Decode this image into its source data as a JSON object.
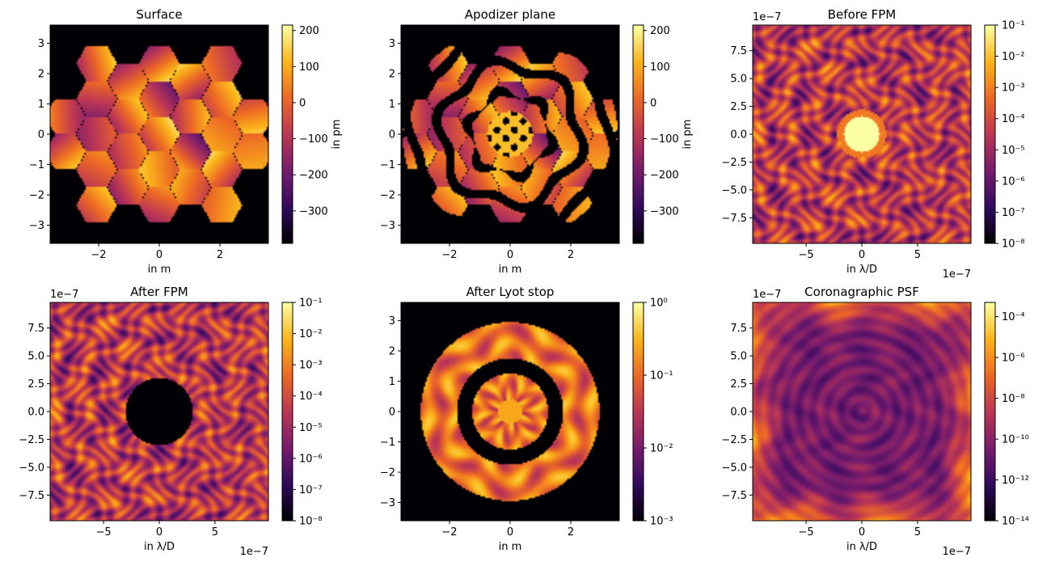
{
  "figure": {
    "layout": "2x3 grid of image panels with colorbars"
  },
  "colors": {
    "colormap": "inferno",
    "stops": [
      "#000004",
      "#320a5e",
      "#781c6d",
      "#bc3754",
      "#ed6925",
      "#fbb61a",
      "#fcffa4"
    ]
  },
  "chart_data": [
    {
      "type": "heatmap",
      "title": "Surface",
      "content": "hex-segments",
      "xlabel": "in m",
      "ylabel": "",
      "x_offset": "",
      "y_offset": "",
      "xlim": [
        -3.6,
        3.6
      ],
      "ylim": [
        -3.6,
        3.6
      ],
      "xticks": [
        -2,
        0,
        2
      ],
      "xtick_labels": [
        "−2",
        "0",
        "2"
      ],
      "yticks": [
        -3,
        -2,
        -1,
        0,
        1,
        2,
        3
      ],
      "ytick_labels": [
        "−3",
        "−2",
        "−1",
        "0",
        "1",
        "2",
        "3"
      ],
      "colorbar": {
        "scale": "linear",
        "range": [
          -390,
          215
        ],
        "ticks": [
          200,
          100,
          0,
          -100,
          -200,
          -300
        ],
        "tick_labels": [
          "200",
          "100",
          "0",
          "−100",
          "−200",
          "−300"
        ],
        "label": "in pm"
      }
    },
    {
      "type": "heatmap",
      "title": "Apodizer plane",
      "content": "apodizer",
      "xlabel": "in m",
      "ylabel": "",
      "x_offset": "",
      "y_offset": "",
      "xlim": [
        -3.6,
        3.6
      ],
      "ylim": [
        -3.6,
        3.6
      ],
      "xticks": [
        -2,
        0,
        2
      ],
      "xtick_labels": [
        "−2",
        "0",
        "2"
      ],
      "yticks": [
        -3,
        -2,
        -1,
        0,
        1,
        2,
        3
      ],
      "ytick_labels": [
        "−3",
        "−2",
        "−1",
        "0",
        "1",
        "2",
        "3"
      ],
      "colorbar": {
        "scale": "linear",
        "range": [
          -390,
          215
        ],
        "ticks": [
          200,
          100,
          0,
          -100,
          -200,
          -300
        ],
        "tick_labels": [
          "200",
          "100",
          "0",
          "−100",
          "−200",
          "−300"
        ],
        "label": "in pm"
      }
    },
    {
      "type": "heatmap",
      "title": "Before FPM",
      "content": "psf",
      "xlabel": "in λ/D",
      "ylabel": "",
      "x_offset": "1e−7",
      "y_offset": "1e−7",
      "xlim": [
        -9.8,
        9.8
      ],
      "ylim": [
        -9.8,
        9.8
      ],
      "xticks": [
        -5,
        0,
        5
      ],
      "xtick_labels": [
        "−5",
        "0",
        "5"
      ],
      "yticks": [
        7.5,
        5,
        2.5,
        0,
        -2.5,
        -5,
        -7.5
      ],
      "ytick_labels": [
        "7.5",
        "5.0",
        "2.5",
        "0.0",
        "−2.5",
        "−5.0",
        "−7.5"
      ],
      "colorbar": {
        "scale": "log",
        "range": [
          -8,
          -1
        ],
        "ticks": [
          -1,
          -2,
          -3,
          -4,
          -5,
          -6,
          -7,
          -8
        ],
        "tick_labels": [
          "10⁻¹",
          "10⁻²",
          "10⁻³",
          "10⁻⁴",
          "10⁻⁵",
          "10⁻⁶",
          "10⁻⁷",
          "10⁻⁸"
        ],
        "label": ""
      }
    },
    {
      "type": "heatmap",
      "title": "After FPM",
      "content": "psf-masked",
      "xlabel": "in λ/D",
      "ylabel": "",
      "x_offset": "1e−7",
      "y_offset": "1e−7",
      "xlim": [
        -9.8,
        9.8
      ],
      "ylim": [
        -9.8,
        9.8
      ],
      "xticks": [
        -5,
        0,
        5
      ],
      "xtick_labels": [
        "−5",
        "0",
        "5"
      ],
      "yticks": [
        7.5,
        5,
        2.5,
        0,
        -2.5,
        -5,
        -7.5
      ],
      "ytick_labels": [
        "7.5",
        "5.0",
        "2.5",
        "0.0",
        "−2.5",
        "−5.0",
        "−7.5"
      ],
      "colorbar": {
        "scale": "log",
        "range": [
          -8,
          -1
        ],
        "ticks": [
          -1,
          -2,
          -3,
          -4,
          -5,
          -6,
          -7,
          -8
        ],
        "tick_labels": [
          "10⁻¹",
          "10⁻²",
          "10⁻³",
          "10⁻⁴",
          "10⁻⁵",
          "10⁻⁶",
          "10⁻⁷",
          "10⁻⁸"
        ],
        "label": ""
      }
    },
    {
      "type": "heatmap",
      "title": "After Lyot stop",
      "content": "lyot",
      "xlabel": "in m",
      "ylabel": "",
      "x_offset": "",
      "y_offset": "",
      "xlim": [
        -3.6,
        3.6
      ],
      "ylim": [
        -3.6,
        3.6
      ],
      "xticks": [
        -2,
        0,
        2
      ],
      "xtick_labels": [
        "−2",
        "0",
        "2"
      ],
      "yticks": [
        -3,
        -2,
        -1,
        0,
        1,
        2,
        3
      ],
      "ytick_labels": [
        "−3",
        "−2",
        "−1",
        "0",
        "1",
        "2",
        "3"
      ],
      "colorbar": {
        "scale": "log",
        "range": [
          -3,
          0
        ],
        "ticks": [
          0,
          -1,
          -2,
          -3
        ],
        "tick_labels": [
          "10⁰",
          "10⁻¹",
          "10⁻²",
          "10⁻³"
        ],
        "label": ""
      }
    },
    {
      "type": "heatmap",
      "title": "Coronagraphic PSF",
      "content": "coro",
      "xlabel": "in λ/D",
      "ylabel": "",
      "x_offset": "1e−7",
      "y_offset": "1e−7",
      "xlim": [
        -9.8,
        9.8
      ],
      "ylim": [
        -9.8,
        9.8
      ],
      "xticks": [
        -5,
        0,
        5
      ],
      "xtick_labels": [
        "−5",
        "0",
        "5"
      ],
      "yticks": [
        7.5,
        5,
        2.5,
        0,
        -2.5,
        -5,
        -7.5
      ],
      "ytick_labels": [
        "7.5",
        "5.0",
        "2.5",
        "0.0",
        "−2.5",
        "−5.0",
        "−7.5"
      ],
      "colorbar": {
        "scale": "log",
        "range": [
          -14,
          -3.3
        ],
        "ticks": [
          -4,
          -6,
          -8,
          -10,
          -12,
          -14
        ],
        "tick_labels": [
          "10⁻⁴",
          "10⁻⁶",
          "10⁻⁸",
          "10⁻¹⁰",
          "10⁻¹²",
          "10⁻¹⁴"
        ],
        "label": ""
      }
    }
  ]
}
